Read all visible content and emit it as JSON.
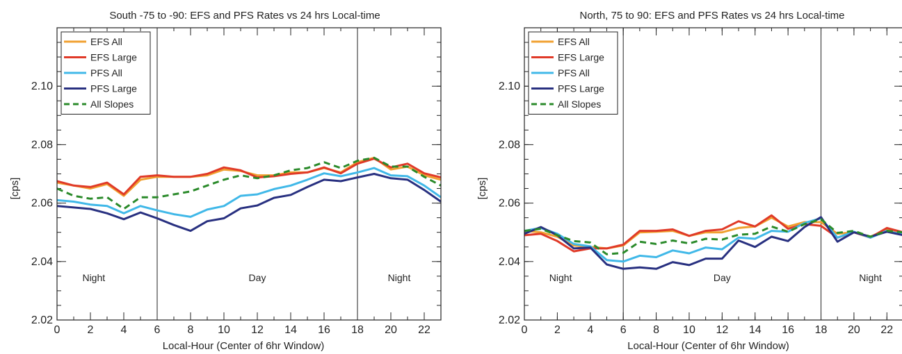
{
  "colors": {
    "efs_all": "#f0a030",
    "efs_large": "#e03a28",
    "pfs_all": "#40b8e8",
    "pfs_large": "#283080",
    "all_slopes": "#2a8a2a"
  },
  "chart_data": [
    {
      "type": "line",
      "title": "South -75 to -90: EFS and PFS Rates vs 24 hrs Local-time",
      "xlabel": "Local-Hour (Center of 6hr Window)",
      "ylabel": "[cps]",
      "xlim": [
        0,
        23
      ],
      "ylim": [
        2.02,
        2.12
      ],
      "xticks": [
        0,
        2,
        4,
        6,
        8,
        10,
        12,
        14,
        16,
        18,
        20,
        22
      ],
      "yticks": [
        2.02,
        2.04,
        2.06,
        2.08,
        2.1
      ],
      "ytick_labels": [
        "2.02",
        "2.04",
        "2.06",
        "2.08",
        "2.10"
      ],
      "vlines": [
        6,
        18
      ],
      "regions": [
        {
          "label": "Night",
          "x": 2.2,
          "y": 2.0345
        },
        {
          "label": "Day",
          "x": 12,
          "y": 2.0345
        },
        {
          "label": "Night",
          "x": 20.5,
          "y": 2.0345
        }
      ],
      "legend_position": "top-left",
      "x": [
        0,
        1,
        2,
        3,
        4,
        5,
        6,
        7,
        8,
        9,
        10,
        11,
        12,
        13,
        14,
        15,
        16,
        17,
        18,
        19,
        20,
        21,
        22,
        23
      ],
      "series": [
        {
          "name": "EFS All",
          "key": "efs_all",
          "dash": false,
          "values": [
            2.067,
            2.066,
            2.065,
            2.0665,
            2.0625,
            2.068,
            2.069,
            2.069,
            2.069,
            2.0695,
            2.0715,
            2.071,
            2.0695,
            2.0695,
            2.0705,
            2.0705,
            2.072,
            2.0705,
            2.074,
            2.0755,
            2.0715,
            2.0725,
            2.0695,
            2.068
          ]
        },
        {
          "name": "EFS Large",
          "key": "efs_large",
          "dash": false,
          "values": [
            2.0675,
            2.066,
            2.0655,
            2.067,
            2.063,
            2.069,
            2.0695,
            2.069,
            2.069,
            2.07,
            2.0722,
            2.0712,
            2.0688,
            2.0692,
            2.07,
            2.0705,
            2.0722,
            2.0702,
            2.0735,
            2.0752,
            2.0722,
            2.0735,
            2.0702,
            2.0688
          ]
        },
        {
          "name": "PFS All",
          "key": "pfs_all",
          "dash": false,
          "values": [
            2.061,
            2.0605,
            2.0595,
            2.059,
            2.0565,
            2.059,
            2.0575,
            2.0562,
            2.0553,
            2.0578,
            2.059,
            2.0625,
            2.063,
            2.0648,
            2.066,
            2.068,
            2.0702,
            2.0692,
            2.0705,
            2.072,
            2.0695,
            2.0692,
            2.066,
            2.062
          ]
        },
        {
          "name": "PFS Large",
          "key": "pfs_large",
          "dash": false,
          "values": [
            2.059,
            2.0585,
            2.058,
            2.0565,
            2.0545,
            2.0568,
            2.0548,
            2.0525,
            2.0505,
            2.0538,
            2.0548,
            2.0582,
            2.0592,
            2.0618,
            2.0628,
            2.0655,
            2.068,
            2.0675,
            2.0688,
            2.07,
            2.0685,
            2.068,
            2.0645,
            2.0605
          ]
        },
        {
          "name": "All Slopes",
          "key": "all_slopes",
          "dash": true,
          "values": [
            2.065,
            2.0625,
            2.0615,
            2.062,
            2.058,
            2.062,
            2.062,
            2.063,
            2.064,
            2.066,
            2.068,
            2.0695,
            2.0685,
            2.0695,
            2.0712,
            2.072,
            2.074,
            2.072,
            2.0745,
            2.0755,
            2.0725,
            2.0725,
            2.069,
            2.066
          ]
        }
      ]
    },
    {
      "type": "line",
      "title": "North, 75 to 90: EFS and PFS Rates vs 24 hrs Local-time",
      "xlabel": "Local-Hour (Center of 6hr Window)",
      "ylabel": "[cps]",
      "xlim": [
        0,
        23
      ],
      "ylim": [
        2.02,
        2.12
      ],
      "xticks": [
        0,
        2,
        4,
        6,
        8,
        10,
        12,
        14,
        16,
        18,
        20,
        22
      ],
      "yticks": [
        2.02,
        2.04,
        2.06,
        2.08,
        2.1
      ],
      "ytick_labels": [
        "2.02",
        "2.04",
        "2.06",
        "2.08",
        "2.10"
      ],
      "vlines": [
        6,
        18
      ],
      "regions": [
        {
          "label": "Night",
          "x": 2.2,
          "y": 2.0345
        },
        {
          "label": "Day",
          "x": 12,
          "y": 2.0345
        },
        {
          "label": "Night",
          "x": 21,
          "y": 2.0345
        }
      ],
      "legend_position": "top-left",
      "x": [
        0,
        1,
        2,
        3,
        4,
        5,
        6,
        7,
        8,
        9,
        10,
        11,
        12,
        13,
        14,
        15,
        16,
        17,
        18,
        19,
        20,
        21,
        22,
        23
      ],
      "series": [
        {
          "name": "EFS All",
          "key": "efs_all",
          "dash": false,
          "values": [
            2.0505,
            2.05,
            2.0485,
            2.0455,
            2.045,
            2.0445,
            2.0455,
            2.05,
            2.0502,
            2.0505,
            2.0488,
            2.05,
            2.05,
            2.0515,
            2.052,
            2.055,
            2.052,
            2.0535,
            2.0535,
            2.0495,
            2.05,
            2.0485,
            2.051,
            2.0495
          ]
        },
        {
          "name": "EFS Large",
          "key": "efs_large",
          "dash": false,
          "values": [
            2.049,
            2.0495,
            2.047,
            2.0435,
            2.0445,
            2.0445,
            2.0458,
            2.0505,
            2.0505,
            2.051,
            2.0488,
            2.0505,
            2.051,
            2.0538,
            2.052,
            2.0558,
            2.0512,
            2.0528,
            2.0522,
            2.0482,
            2.05,
            2.0482,
            2.0515,
            2.05
          ]
        },
        {
          "name": "PFS All",
          "key": "pfs_all",
          "dash": false,
          "values": [
            2.0505,
            2.0515,
            2.0495,
            2.046,
            2.0452,
            2.0405,
            2.04,
            2.042,
            2.0415,
            2.0438,
            2.0428,
            2.0448,
            2.0442,
            2.0482,
            2.0478,
            2.0505,
            2.0502,
            2.0532,
            2.0548,
            2.0482,
            2.0502,
            2.0482,
            2.0505,
            2.0492
          ]
        },
        {
          "name": "PFS Large",
          "key": "pfs_large",
          "dash": false,
          "values": [
            2.0495,
            2.0518,
            2.049,
            2.0445,
            2.0448,
            2.039,
            2.0375,
            2.038,
            2.0375,
            2.0398,
            2.0388,
            2.041,
            2.041,
            2.0472,
            2.045,
            2.0485,
            2.047,
            2.0518,
            2.0552,
            2.0468,
            2.05,
            2.0485,
            2.0502,
            2.049
          ]
        },
        {
          "name": "All Slopes",
          "key": "all_slopes",
          "dash": true,
          "values": [
            2.0505,
            2.0512,
            2.049,
            2.047,
            2.0465,
            2.0425,
            2.043,
            2.0468,
            2.046,
            2.0472,
            2.0462,
            2.0478,
            2.0475,
            2.0492,
            2.0495,
            2.052,
            2.0502,
            2.0528,
            2.0545,
            2.0498,
            2.0505,
            2.0485,
            2.0505,
            2.05
          ]
        }
      ]
    }
  ]
}
